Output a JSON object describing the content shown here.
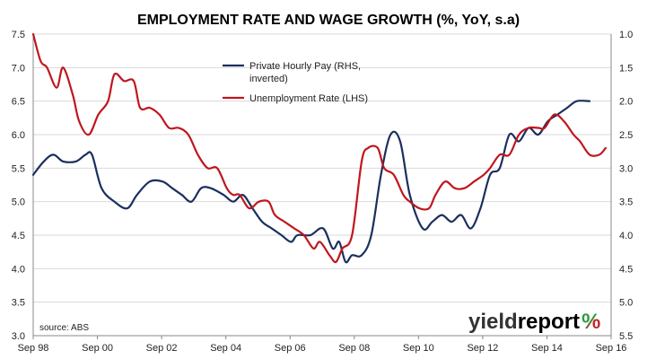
{
  "chart_data": {
    "type": "line",
    "title": "EMPLOYMENT RATE AND WAGE GROWTH (%, YoY, s.a)",
    "source_note": "source: ABS",
    "brand": {
      "text_a": "yield",
      "text_b": "report",
      "mark": "%",
      "color_a": "#333333",
      "color_b": "#000000",
      "mark_color_a": "#2e9e3e",
      "mark_color_b": "#c0282d"
    },
    "x_axis": {
      "range": [
        1998.67,
        2016.67
      ],
      "tick_labels": [
        "Sep 98",
        "Sep 00",
        "Sep 02",
        "Sep 04",
        "Sep 06",
        "Sep 08",
        "Sep 10",
        "Sep 12",
        "Sep 14",
        "Sep 16"
      ],
      "tick_values": [
        1998.67,
        2000.67,
        2002.67,
        2004.67,
        2006.67,
        2008.67,
        2010.67,
        2012.67,
        2014.67,
        2016.67
      ]
    },
    "y_left": {
      "range": [
        3.0,
        7.5
      ],
      "tick_labels": [
        "3.0",
        "3.5",
        "4.0",
        "4.5",
        "5.0",
        "5.5",
        "6.0",
        "6.5",
        "7.0",
        "7.5"
      ],
      "tick_values": [
        3.0,
        3.5,
        4.0,
        4.5,
        5.0,
        5.5,
        6.0,
        6.5,
        7.0,
        7.5
      ]
    },
    "y_right": {
      "range": [
        1.0,
        5.5
      ],
      "inverted": true,
      "tick_labels": [
        "1.0",
        "1.5",
        "2.0",
        "2.5",
        "3.0",
        "3.5",
        "4.0",
        "4.5",
        "5.0",
        "5.5"
      ],
      "tick_values": [
        1.0,
        1.5,
        2.0,
        2.5,
        3.0,
        3.5,
        4.0,
        4.5,
        5.0,
        5.5
      ]
    },
    "legend_position": "top-center",
    "series": [
      {
        "name": "Private Hourly Pay (RHS, inverted)",
        "name_lines": [
          "Private Hourly Pay (RHS,",
          "inverted)"
        ],
        "axis": "right",
        "color": "#1b2f5e",
        "points": [
          [
            1998.67,
            3.1
          ],
          [
            1999.0,
            2.9
          ],
          [
            1999.3,
            2.8
          ],
          [
            1999.6,
            2.9
          ],
          [
            2000.0,
            2.9
          ],
          [
            2000.3,
            2.8
          ],
          [
            2000.5,
            2.8
          ],
          [
            2000.8,
            3.3
          ],
          [
            2001.2,
            3.5
          ],
          [
            2001.6,
            3.6
          ],
          [
            2001.9,
            3.4
          ],
          [
            2002.3,
            3.2
          ],
          [
            2002.7,
            3.2
          ],
          [
            2003.0,
            3.3
          ],
          [
            2003.3,
            3.4
          ],
          [
            2003.6,
            3.5
          ],
          [
            2003.9,
            3.3
          ],
          [
            2004.2,
            3.3
          ],
          [
            2004.6,
            3.4
          ],
          [
            2004.9,
            3.5
          ],
          [
            2005.2,
            3.4
          ],
          [
            2005.5,
            3.6
          ],
          [
            2005.8,
            3.8
          ],
          [
            2006.1,
            3.9
          ],
          [
            2006.4,
            4.0
          ],
          [
            2006.7,
            4.1
          ],
          [
            2006.9,
            4.0
          ],
          [
            2007.3,
            4.0
          ],
          [
            2007.7,
            3.9
          ],
          [
            2008.0,
            4.2
          ],
          [
            2008.2,
            4.1
          ],
          [
            2008.4,
            4.4
          ],
          [
            2008.6,
            4.3
          ],
          [
            2008.9,
            4.3
          ],
          [
            2009.2,
            4.0
          ],
          [
            2009.5,
            3.1
          ],
          [
            2009.8,
            2.5
          ],
          [
            2010.1,
            2.6
          ],
          [
            2010.4,
            3.4
          ],
          [
            2010.8,
            3.9
          ],
          [
            2011.1,
            3.8
          ],
          [
            2011.4,
            3.7
          ],
          [
            2011.7,
            3.8
          ],
          [
            2012.0,
            3.7
          ],
          [
            2012.3,
            3.9
          ],
          [
            2012.6,
            3.6
          ],
          [
            2012.9,
            3.1
          ],
          [
            2013.2,
            3.0
          ],
          [
            2013.5,
            2.5
          ],
          [
            2013.8,
            2.6
          ],
          [
            2014.1,
            2.4
          ],
          [
            2014.4,
            2.5
          ],
          [
            2014.7,
            2.3
          ],
          [
            2015.0,
            2.2
          ],
          [
            2015.3,
            2.1
          ],
          [
            2015.6,
            2.0
          ],
          [
            2016.0,
            2.0
          ]
        ]
      },
      {
        "name": "Unemployment Rate (LHS)",
        "name_lines": [
          "Unemployment Rate (LHS)"
        ],
        "axis": "left",
        "color": "#c0161e",
        "points": [
          [
            1998.67,
            7.5
          ],
          [
            1998.9,
            7.1
          ],
          [
            1999.1,
            7.0
          ],
          [
            1999.4,
            6.7
          ],
          [
            1999.6,
            7.0
          ],
          [
            1999.9,
            6.6
          ],
          [
            2000.1,
            6.2
          ],
          [
            2000.4,
            6.0
          ],
          [
            2000.7,
            6.3
          ],
          [
            2001.0,
            6.5
          ],
          [
            2001.2,
            6.9
          ],
          [
            2001.5,
            6.8
          ],
          [
            2001.8,
            6.8
          ],
          [
            2002.0,
            6.4
          ],
          [
            2002.3,
            6.4
          ],
          [
            2002.6,
            6.3
          ],
          [
            2002.9,
            6.1
          ],
          [
            2003.2,
            6.1
          ],
          [
            2003.5,
            6.0
          ],
          [
            2003.8,
            5.7
          ],
          [
            2004.1,
            5.5
          ],
          [
            2004.4,
            5.5
          ],
          [
            2004.7,
            5.2
          ],
          [
            2004.9,
            5.1
          ],
          [
            2005.1,
            5.1
          ],
          [
            2005.4,
            4.9
          ],
          [
            2005.7,
            5.0
          ],
          [
            2006.0,
            5.0
          ],
          [
            2006.2,
            4.8
          ],
          [
            2006.5,
            4.7
          ],
          [
            2006.8,
            4.6
          ],
          [
            2007.1,
            4.5
          ],
          [
            2007.4,
            4.3
          ],
          [
            2007.6,
            4.4
          ],
          [
            2007.9,
            4.2
          ],
          [
            2008.1,
            4.1
          ],
          [
            2008.3,
            4.3
          ],
          [
            2008.6,
            4.5
          ],
          [
            2008.9,
            5.6
          ],
          [
            2009.1,
            5.8
          ],
          [
            2009.4,
            5.8
          ],
          [
            2009.6,
            5.5
          ],
          [
            2009.9,
            5.4
          ],
          [
            2010.2,
            5.1
          ],
          [
            2010.4,
            5.0
          ],
          [
            2010.7,
            4.9
          ],
          [
            2011.0,
            4.9
          ],
          [
            2011.2,
            5.1
          ],
          [
            2011.5,
            5.3
          ],
          [
            2011.8,
            5.2
          ],
          [
            2012.1,
            5.2
          ],
          [
            2012.4,
            5.3
          ],
          [
            2012.7,
            5.4
          ],
          [
            2012.9,
            5.5
          ],
          [
            2013.2,
            5.7
          ],
          [
            2013.5,
            5.7
          ],
          [
            2013.8,
            6.0
          ],
          [
            2014.1,
            6.1
          ],
          [
            2014.4,
            6.1
          ],
          [
            2014.6,
            6.1
          ],
          [
            2014.9,
            6.3
          ],
          [
            2015.2,
            6.2
          ],
          [
            2015.5,
            6.0
          ],
          [
            2015.7,
            5.9
          ],
          [
            2016.0,
            5.7
          ],
          [
            2016.3,
            5.7
          ],
          [
            2016.5,
            5.8
          ]
        ]
      }
    ]
  }
}
